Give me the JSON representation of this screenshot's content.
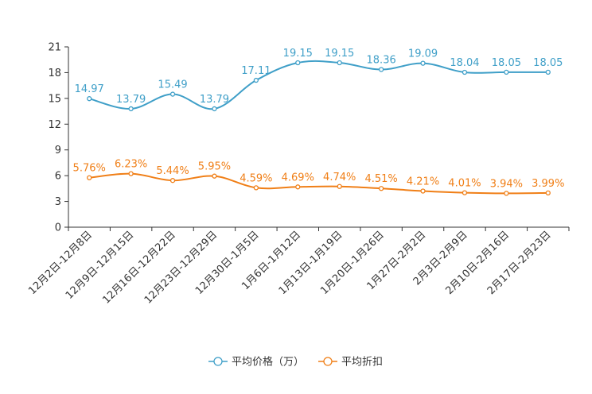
{
  "chart_data": {
    "type": "line",
    "title": "",
    "xlabel": "",
    "ylabel": "",
    "ylim": [
      0,
      21
    ],
    "yticks": [
      0,
      3,
      6,
      9,
      12,
      15,
      18,
      21
    ],
    "grid": false,
    "legend_position": "bottom-center",
    "categories": [
      "12月2日-12月8日",
      "12月9日-12月15日",
      "12月16日-12月22日",
      "12月23日-12月29日",
      "12月30日-1月5日",
      "1月6日-1月12日",
      "1月13日-1月19日",
      "1月20日-1月26日",
      "1月27日-2月2日",
      "2月3日-2月9日",
      "2月10日-2月16日",
      "2月17日-2月23日"
    ],
    "series": [
      {
        "name": "平均价格（万）",
        "color": "#3f9fc8",
        "values": [
          14.97,
          13.79,
          15.49,
          13.79,
          17.11,
          19.15,
          19.15,
          18.36,
          19.09,
          18.04,
          18.05,
          18.05
        ],
        "labels": [
          "14.97",
          "13.79",
          "15.49",
          "13.79",
          "17.11",
          "19.15",
          "19.15",
          "18.36",
          "19.09",
          "18.04",
          "18.05",
          "18.05"
        ]
      },
      {
        "name": "平均折扣",
        "color": "#f07f17",
        "values": [
          5.76,
          6.23,
          5.44,
          5.95,
          4.59,
          4.69,
          4.74,
          4.51,
          4.21,
          4.01,
          3.94,
          3.99
        ],
        "labels": [
          "5.76%",
          "6.23%",
          "5.44%",
          "5.95%",
          "4.59%",
          "4.69%",
          "4.74%",
          "4.51%",
          "4.21%",
          "4.01%",
          "3.94%",
          "3.99%"
        ]
      }
    ]
  }
}
